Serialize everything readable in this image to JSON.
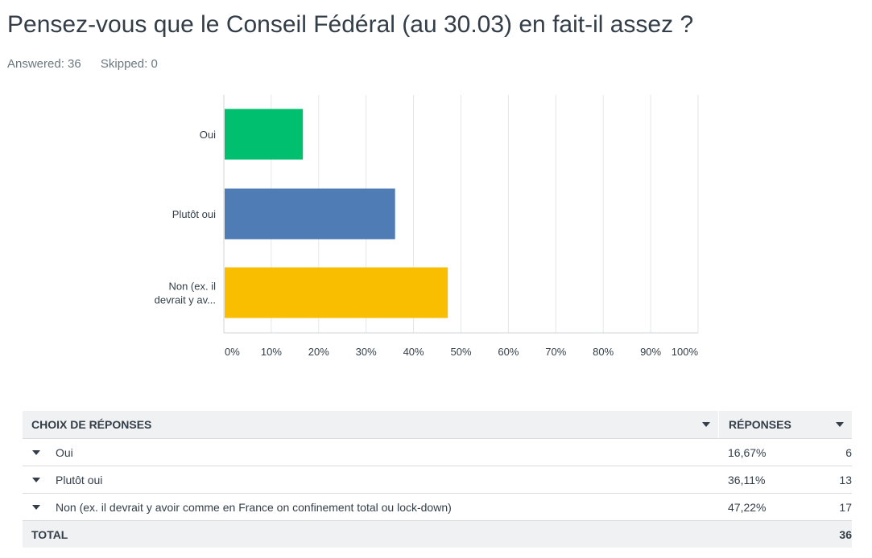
{
  "title": "Pensez-vous que le Conseil Fédéral (au 30.03) en fait-il assez ?",
  "answered": "Answered: 36",
  "skipped": "Skipped: 0",
  "chart_data": {
    "type": "bar",
    "orientation": "horizontal",
    "categories": [
      [
        "Oui"
      ],
      [
        "Plutôt oui"
      ],
      [
        "Non (ex. il",
        "devrait y av..."
      ]
    ],
    "values": [
      16.67,
      36.11,
      47.22
    ],
    "colors": [
      "#00bf6f",
      "#507cb6",
      "#f9be00"
    ],
    "xlim": [
      0,
      100
    ],
    "xticks": [
      "0%",
      "10%",
      "20%",
      "30%",
      "40%",
      "50%",
      "60%",
      "70%",
      "80%",
      "90%",
      "100%"
    ],
    "grid": true
  },
  "table": {
    "header_choice": "CHOIX DE RÉPONSES",
    "header_responses": "RÉPONSES",
    "rows": [
      {
        "choice": "Oui",
        "percent": "16,67%",
        "count": "6"
      },
      {
        "choice": "Plutôt oui",
        "percent": "36,11%",
        "count": "13"
      },
      {
        "choice": "Non (ex. il devrait y avoir comme en France on confinement total ou lock-down)",
        "percent": "47,22%",
        "count": "17"
      }
    ],
    "total_label": "TOTAL",
    "total_value": "36"
  }
}
